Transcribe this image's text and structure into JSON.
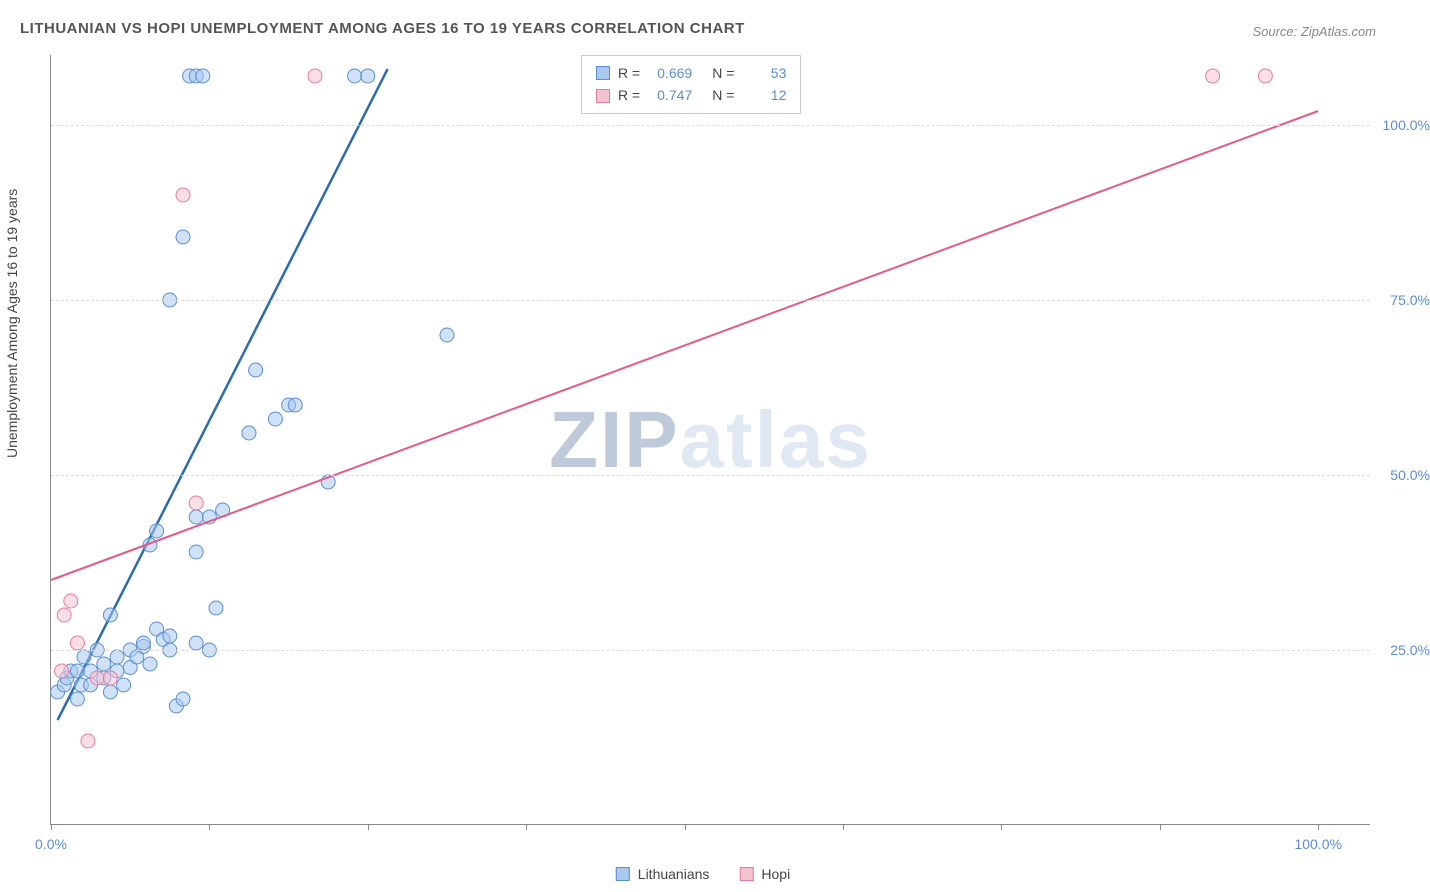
{
  "title": "LITHUANIAN VS HOPI UNEMPLOYMENT AMONG AGES 16 TO 19 YEARS CORRELATION CHART",
  "source": "Source: ZipAtlas.com",
  "y_axis_label": "Unemployment Among Ages 16 to 19 years",
  "watermark_a": "ZIP",
  "watermark_b": "atlas",
  "chart": {
    "type": "scatter",
    "background_color": "#ffffff",
    "grid_color": "#dddddd",
    "xlim": [
      0,
      100
    ],
    "ylim": [
      0,
      110
    ],
    "y_ticks": [
      25,
      50,
      75,
      100
    ],
    "y_tick_labels": [
      "25.0%",
      "50.0%",
      "75.0%",
      "100.0%"
    ],
    "x_ticks": [
      0,
      12,
      24,
      36,
      48,
      60,
      72,
      84,
      96
    ],
    "x_tick_labels": {
      "0": "0.0%",
      "96": "100.0%"
    },
    "marker_radius": 7,
    "marker_opacity": 0.55,
    "series": [
      {
        "name": "Lithuanians",
        "fill_color": "#a8c8ec",
        "stroke_color": "#5b8dd6",
        "line_color": "#2b6cb0",
        "line_width": 2.5,
        "R": "0.669",
        "N": "53",
        "trend": {
          "x1": 0.5,
          "y1": 15,
          "x2": 25.5,
          "y2": 108
        },
        "points": [
          [
            0.5,
            19
          ],
          [
            1,
            20
          ],
          [
            1.2,
            21
          ],
          [
            1.5,
            22
          ],
          [
            2,
            18
          ],
          [
            2,
            22
          ],
          [
            2.3,
            20
          ],
          [
            2.5,
            24
          ],
          [
            3,
            20
          ],
          [
            3,
            22
          ],
          [
            3.5,
            25
          ],
          [
            4,
            21
          ],
          [
            4,
            23
          ],
          [
            4.5,
            30
          ],
          [
            5,
            22
          ],
          [
            5,
            24
          ],
          [
            5.5,
            20
          ],
          [
            6,
            25
          ],
          [
            6,
            22.5
          ],
          [
            6.5,
            24
          ],
          [
            7,
            25.5
          ],
          [
            7,
            26
          ],
          [
            7.5,
            23
          ],
          [
            8,
            28
          ],
          [
            8.5,
            26.5
          ],
          [
            9,
            25
          ],
          [
            9,
            27
          ],
          [
            9.5,
            17
          ],
          [
            10,
            18
          ],
          [
            11,
            26
          ],
          [
            12,
            25
          ],
          [
            12.5,
            31
          ],
          [
            10.5,
            107
          ],
          [
            11,
            107
          ],
          [
            23,
            107
          ],
          [
            24,
            107
          ],
          [
            10,
            84
          ],
          [
            9,
            75
          ],
          [
            11,
            39
          ],
          [
            11,
            44
          ],
          [
            12,
            44
          ],
          [
            13,
            45
          ],
          [
            15,
            56
          ],
          [
            17,
            58
          ],
          [
            18,
            60
          ],
          [
            18.5,
            60
          ],
          [
            15.5,
            65
          ],
          [
            21,
            49
          ],
          [
            30,
            70
          ],
          [
            7.5,
            40
          ],
          [
            8,
            42
          ],
          [
            11.5,
            107
          ],
          [
            4.5,
            19
          ]
        ]
      },
      {
        "name": "Hopi",
        "fill_color": "#f5c2d0",
        "stroke_color": "#e87ba0",
        "line_color": "#e55a8a",
        "line_width": 2,
        "R": "0.747",
        "N": "12",
        "trend": {
          "x1": 0,
          "y1": 35,
          "x2": 96,
          "y2": 102
        },
        "points": [
          [
            0.8,
            22
          ],
          [
            1,
            30
          ],
          [
            1.5,
            32
          ],
          [
            2,
            26
          ],
          [
            3.5,
            21
          ],
          [
            4.5,
            21
          ],
          [
            2.8,
            12
          ],
          [
            10,
            90
          ],
          [
            11,
            46
          ],
          [
            20,
            107
          ],
          [
            88,
            107
          ],
          [
            92,
            107
          ]
        ]
      }
    ]
  },
  "legend_bottom": [
    {
      "label": "Lithuanians",
      "fill": "#a8c8ec",
      "stroke": "#5b8dd6"
    },
    {
      "label": "Hopi",
      "fill": "#f5c2d0",
      "stroke": "#e87ba0"
    }
  ]
}
